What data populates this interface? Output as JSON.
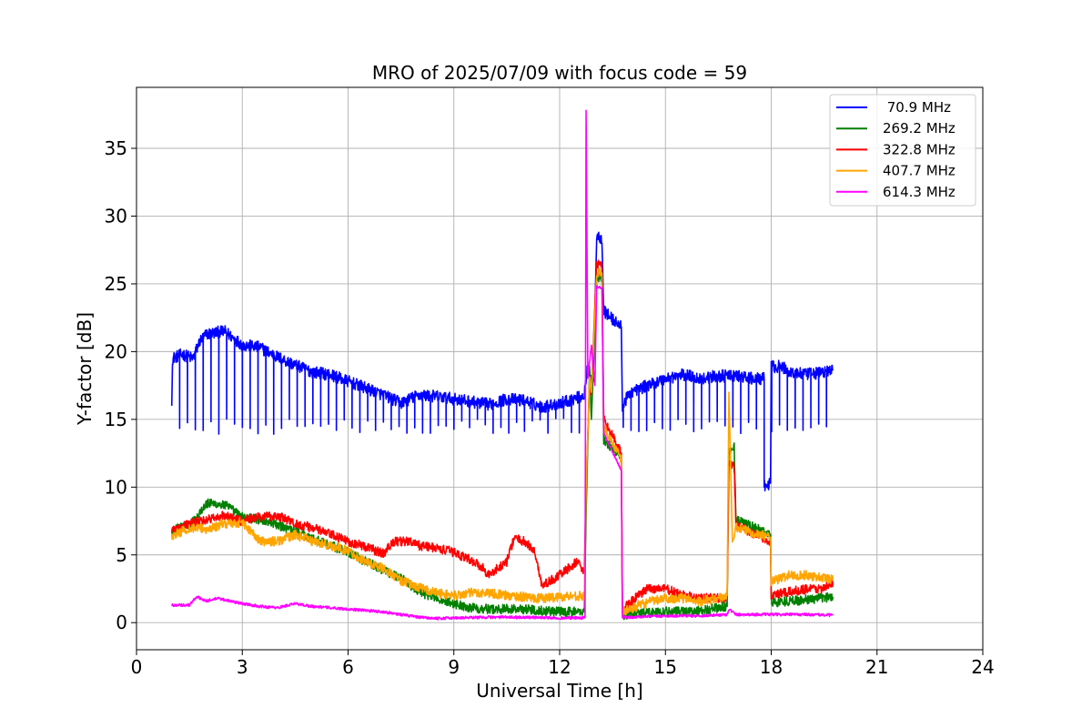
{
  "chart_data": {
    "type": "line",
    "title": "MRO of 2025/07/09 with focus code = 59",
    "xlabel": "Universal Time [h]",
    "ylabel": "Y-factor [dB]",
    "xlim": [
      0,
      24
    ],
    "ylim": [
      -2,
      39.5
    ],
    "xticks": [
      0,
      3,
      6,
      9,
      12,
      15,
      18,
      21,
      24
    ],
    "yticks": [
      0,
      5,
      10,
      15,
      20,
      25,
      30,
      35
    ],
    "grid": true,
    "legend_position": "top-right",
    "series": [
      {
        "name": " 70.9 MHz",
        "color": "#0000ff",
        "noise": 0.45,
        "dips": {
          "every": 0.22,
          "to": 14.5
        },
        "points": [
          [
            1.0,
            16.0
          ],
          [
            1.02,
            19.5
          ],
          [
            1.3,
            19.8
          ],
          [
            1.6,
            19.5
          ],
          [
            1.8,
            20.8
          ],
          [
            2.0,
            21.3
          ],
          [
            2.5,
            21.5
          ],
          [
            3.0,
            20.5
          ],
          [
            3.5,
            20.3
          ],
          [
            4.0,
            19.6
          ],
          [
            4.5,
            19.0
          ],
          [
            5.0,
            18.5
          ],
          [
            5.5,
            18.3
          ],
          [
            6.0,
            17.8
          ],
          [
            6.5,
            17.3
          ],
          [
            7.0,
            16.8
          ],
          [
            7.5,
            16.2
          ],
          [
            8.0,
            16.8
          ],
          [
            8.5,
            16.7
          ],
          [
            9.0,
            16.5
          ],
          [
            9.5,
            16.3
          ],
          [
            10.0,
            16.1
          ],
          [
            10.5,
            16.5
          ],
          [
            11.0,
            16.4
          ],
          [
            11.5,
            15.9
          ],
          [
            12.0,
            16.2
          ],
          [
            12.5,
            16.6
          ],
          [
            12.7,
            16.8
          ],
          [
            12.78,
            18.6
          ],
          [
            12.95,
            17.8
          ],
          [
            13.05,
            28.5
          ],
          [
            13.2,
            28.4
          ],
          [
            13.25,
            23.0
          ],
          [
            13.75,
            21.8
          ],
          [
            13.78,
            16.0
          ],
          [
            14.0,
            17.0
          ],
          [
            14.5,
            17.5
          ],
          [
            15.0,
            18.0
          ],
          [
            15.5,
            18.3
          ],
          [
            16.0,
            18.0
          ],
          [
            16.5,
            18.2
          ],
          [
            16.8,
            18.2
          ],
          [
            17.0,
            18.2
          ],
          [
            17.5,
            18.0
          ],
          [
            17.8,
            18.0
          ],
          [
            17.8,
            10.0
          ],
          [
            17.8,
            10.0
          ],
          [
            17.98,
            10.3
          ],
          [
            18.0,
            18.9
          ],
          [
            18.3,
            18.9
          ],
          [
            18.5,
            18.5
          ],
          [
            19.0,
            18.3
          ],
          [
            19.5,
            18.5
          ],
          [
            19.75,
            18.6
          ]
        ]
      },
      {
        "name": "269.2 MHz",
        "color": "#008000",
        "noise": 0.35,
        "points": [
          [
            1.0,
            6.8
          ],
          [
            1.5,
            7.2
          ],
          [
            2.0,
            8.8
          ],
          [
            2.5,
            8.7
          ],
          [
            3.0,
            7.8
          ],
          [
            3.5,
            7.6
          ],
          [
            4.0,
            7.2
          ],
          [
            4.5,
            6.8
          ],
          [
            5.0,
            6.2
          ],
          [
            5.5,
            5.7
          ],
          [
            6.0,
            5.2
          ],
          [
            6.5,
            4.5
          ],
          [
            7.0,
            3.9
          ],
          [
            7.5,
            3.3
          ],
          [
            8.0,
            2.3
          ],
          [
            8.5,
            1.8
          ],
          [
            9.0,
            1.4
          ],
          [
            9.5,
            1.1
          ],
          [
            10.0,
            1.0
          ],
          [
            11.0,
            1.0
          ],
          [
            12.0,
            0.8
          ],
          [
            12.7,
            0.8
          ],
          [
            12.75,
            8.0
          ],
          [
            12.85,
            19.0
          ],
          [
            12.9,
            15.0
          ],
          [
            13.05,
            25.5
          ],
          [
            13.2,
            25.5
          ],
          [
            13.25,
            13.5
          ],
          [
            13.75,
            12.2
          ],
          [
            13.78,
            0.5
          ],
          [
            14.0,
            0.7
          ],
          [
            15.0,
            0.8
          ],
          [
            16.0,
            0.9
          ],
          [
            16.75,
            1.2
          ],
          [
            16.8,
            12.5
          ],
          [
            16.95,
            13.0
          ],
          [
            17.0,
            7.6
          ],
          [
            17.98,
            6.5
          ],
          [
            18.0,
            1.5
          ],
          [
            19.0,
            1.7
          ],
          [
            19.75,
            1.9
          ]
        ]
      },
      {
        "name": "322.8 MHz",
        "color": "#ff0000",
        "noise": 0.35,
        "points": [
          [
            1.0,
            6.9
          ],
          [
            1.5,
            7.3
          ],
          [
            2.0,
            7.6
          ],
          [
            2.5,
            7.9
          ],
          [
            3.0,
            7.5
          ],
          [
            3.5,
            7.8
          ],
          [
            4.0,
            7.9
          ],
          [
            4.5,
            7.3
          ],
          [
            5.0,
            7.0
          ],
          [
            5.5,
            6.5
          ],
          [
            6.0,
            6.0
          ],
          [
            6.5,
            5.6
          ],
          [
            7.0,
            5.1
          ],
          [
            7.3,
            6.0
          ],
          [
            7.7,
            6.0
          ],
          [
            8.0,
            5.7
          ],
          [
            8.5,
            5.5
          ],
          [
            9.0,
            5.2
          ],
          [
            9.5,
            4.6
          ],
          [
            9.8,
            4.1
          ],
          [
            10.0,
            3.5
          ],
          [
            10.5,
            4.5
          ],
          [
            10.7,
            6.2
          ],
          [
            11.0,
            6.0
          ],
          [
            11.3,
            5.2
          ],
          [
            11.5,
            2.7
          ],
          [
            12.0,
            3.5
          ],
          [
            12.5,
            4.5
          ],
          [
            12.7,
            3.8
          ],
          [
            12.75,
            10.0
          ],
          [
            12.85,
            17.5
          ],
          [
            12.9,
            17.0
          ],
          [
            13.05,
            26.5
          ],
          [
            13.2,
            26.3
          ],
          [
            13.25,
            15.0
          ],
          [
            13.75,
            12.5
          ],
          [
            13.78,
            1.0
          ],
          [
            14.0,
            1.5
          ],
          [
            14.5,
            2.5
          ],
          [
            15.0,
            2.5
          ],
          [
            15.5,
            2.0
          ],
          [
            16.0,
            1.8
          ],
          [
            16.5,
            1.8
          ],
          [
            16.75,
            1.8
          ],
          [
            16.8,
            12.0
          ],
          [
            16.95,
            11.5
          ],
          [
            17.0,
            7.2
          ],
          [
            17.98,
            6.0
          ],
          [
            18.0,
            2.0
          ],
          [
            19.0,
            2.5
          ],
          [
            19.5,
            2.5
          ],
          [
            19.75,
            3.0
          ]
        ]
      },
      {
        "name": "407.7 MHz",
        "color": "#ffa500",
        "noise": 0.35,
        "points": [
          [
            1.0,
            6.4
          ],
          [
            1.5,
            7.0
          ],
          [
            2.0,
            6.9
          ],
          [
            2.5,
            7.3
          ],
          [
            3.0,
            7.4
          ],
          [
            3.5,
            6.0
          ],
          [
            4.0,
            6.0
          ],
          [
            4.5,
            6.5
          ],
          [
            5.0,
            6.0
          ],
          [
            5.5,
            5.7
          ],
          [
            6.0,
            5.3
          ],
          [
            6.5,
            4.5
          ],
          [
            7.0,
            4.0
          ],
          [
            7.5,
            3.1
          ],
          [
            8.0,
            2.6
          ],
          [
            8.5,
            2.2
          ],
          [
            9.0,
            2.0
          ],
          [
            9.5,
            2.2
          ],
          [
            10.0,
            2.2
          ],
          [
            10.5,
            2.0
          ],
          [
            11.0,
            1.9
          ],
          [
            11.5,
            1.8
          ],
          [
            12.0,
            1.9
          ],
          [
            12.5,
            2.0
          ],
          [
            12.7,
            1.9
          ],
          [
            12.75,
            10.0
          ],
          [
            12.85,
            18.0
          ],
          [
            12.9,
            17.0
          ],
          [
            13.05,
            25.8
          ],
          [
            13.2,
            25.8
          ],
          [
            13.25,
            14.5
          ],
          [
            13.75,
            12.0
          ],
          [
            13.78,
            0.8
          ],
          [
            14.0,
            1.0
          ],
          [
            14.5,
            1.5
          ],
          [
            15.0,
            1.8
          ],
          [
            15.5,
            1.8
          ],
          [
            16.0,
            1.6
          ],
          [
            16.5,
            1.8
          ],
          [
            16.75,
            2.0
          ],
          [
            16.8,
            17.0
          ],
          [
            16.9,
            6.0
          ],
          [
            17.0,
            7.0
          ],
          [
            17.98,
            6.3
          ],
          [
            18.0,
            3.0
          ],
          [
            18.5,
            3.5
          ],
          [
            19.0,
            3.5
          ],
          [
            19.5,
            3.3
          ],
          [
            19.75,
            3.2
          ]
        ]
      },
      {
        "name": "614.3 MHz",
        "color": "#ff00ff",
        "noise": 0.1,
        "points": [
          [
            1.0,
            1.3
          ],
          [
            1.5,
            1.3
          ],
          [
            1.7,
            1.9
          ],
          [
            2.0,
            1.6
          ],
          [
            2.3,
            1.8
          ],
          [
            3.0,
            1.4
          ],
          [
            3.5,
            1.2
          ],
          [
            4.0,
            1.1
          ],
          [
            4.5,
            1.4
          ],
          [
            5.0,
            1.2
          ],
          [
            5.5,
            1.1
          ],
          [
            6.0,
            1.0
          ],
          [
            6.5,
            0.9
          ],
          [
            7.0,
            0.8
          ],
          [
            7.5,
            0.6
          ],
          [
            8.0,
            0.4
          ],
          [
            8.5,
            0.3
          ],
          [
            9.0,
            0.35
          ],
          [
            10.0,
            0.4
          ],
          [
            11.0,
            0.4
          ],
          [
            12.0,
            0.35
          ],
          [
            12.72,
            0.35
          ],
          [
            12.75,
            37.8
          ],
          [
            12.8,
            18.0
          ],
          [
            12.9,
            20.5
          ],
          [
            13.0,
            17.5
          ],
          [
            13.05,
            24.8
          ],
          [
            13.2,
            24.7
          ],
          [
            13.25,
            14.0
          ],
          [
            13.75,
            11.2
          ],
          [
            13.78,
            0.4
          ],
          [
            14.0,
            0.4
          ],
          [
            15.0,
            0.5
          ],
          [
            16.0,
            0.5
          ],
          [
            16.75,
            0.6
          ],
          [
            16.8,
            1.0
          ],
          [
            17.0,
            0.6
          ],
          [
            17.98,
            0.6
          ],
          [
            18.0,
            0.6
          ],
          [
            19.0,
            0.6
          ],
          [
            19.75,
            0.55
          ]
        ]
      }
    ]
  }
}
